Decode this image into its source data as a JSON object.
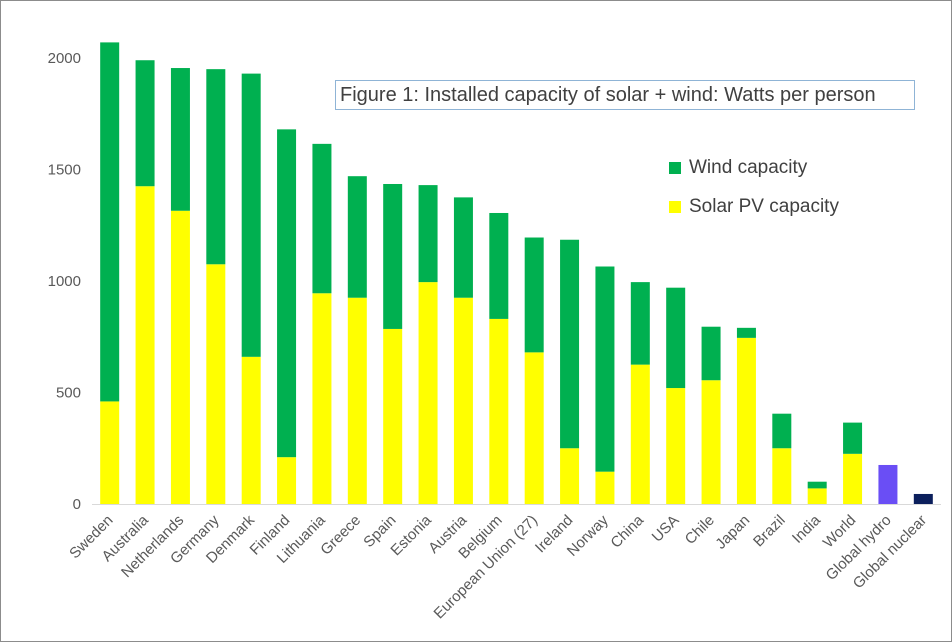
{
  "chart_data": {
    "type": "bar",
    "stacked": true,
    "title": "Figure 1: Installed capacity of solar + wind: Watts per person",
    "xlabel": "",
    "ylabel": "",
    "ylim": [
      0,
      2100
    ],
    "yticks": [
      0,
      500,
      1000,
      1500,
      2000
    ],
    "grid": false,
    "legend_position": "top-right",
    "categories": [
      "Sweden",
      "Australia",
      "Netherlands",
      "Germany",
      "Denmark",
      "Finland",
      "Lithuania",
      "Greece",
      "Spain",
      "Estonia",
      "Austria",
      "Belgium",
      "European Union (27)",
      "Ireland",
      "Norway",
      "China",
      "USA",
      "Chile",
      "Japan",
      "Brazil",
      "India",
      "World",
      "Global hydro",
      "Global nuclear"
    ],
    "series": [
      {
        "name": "Solar PV capacity",
        "color": "#ffff00",
        "values": [
          460,
          1425,
          1315,
          1075,
          660,
          210,
          945,
          925,
          785,
          995,
          925,
          830,
          680,
          250,
          145,
          625,
          520,
          555,
          745,
          250,
          70,
          225,
          0,
          0
        ]
      },
      {
        "name": "Wind capacity",
        "color": "#00b050",
        "values": [
          1610,
          565,
          640,
          875,
          1270,
          1470,
          670,
          545,
          650,
          435,
          450,
          475,
          515,
          935,
          920,
          370,
          450,
          240,
          45,
          155,
          30,
          140,
          0,
          0
        ]
      }
    ],
    "extra_bars": [
      {
        "category": "Global hydro",
        "value": 175,
        "color": "#6a4ef5"
      },
      {
        "category": "Global nuclear",
        "value": 45,
        "color": "#0b1f5c"
      }
    ]
  }
}
